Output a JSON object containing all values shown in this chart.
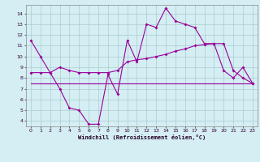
{
  "x": [
    0,
    1,
    2,
    3,
    4,
    5,
    6,
    7,
    8,
    9,
    10,
    11,
    12,
    13,
    14,
    15,
    16,
    17,
    18,
    19,
    20,
    21,
    22,
    23
  ],
  "line1": [
    11.5,
    10.0,
    8.5,
    7.0,
    5.2,
    5.0,
    3.7,
    3.7,
    8.3,
    6.5,
    11.5,
    9.5,
    13.0,
    12.7,
    14.5,
    13.3,
    13.0,
    12.7,
    11.2,
    11.2,
    8.7,
    8.0,
    9.0,
    7.5
  ],
  "line2": [
    8.5,
    8.5,
    8.5,
    9.0,
    8.7,
    8.5,
    8.5,
    8.5,
    8.5,
    8.7,
    9.5,
    9.7,
    9.8,
    10.0,
    10.2,
    10.5,
    10.7,
    11.0,
    11.1,
    11.2,
    11.2,
    8.7,
    8.0,
    7.5
  ],
  "line3": [
    7.5,
    7.5,
    7.5,
    7.5,
    7.5,
    7.5,
    7.5,
    7.5,
    7.5,
    7.5,
    7.5,
    7.5,
    7.5,
    7.5,
    7.5,
    7.5,
    7.5,
    7.5,
    7.5,
    7.5,
    7.5,
    7.5,
    7.5,
    7.5
  ],
  "line_color": "#990099",
  "bg_color": "#d4eef4",
  "grid_color": "#aacccc",
  "xlabel": "Windchill (Refroidissement éolien,°C)",
  "ylim": [
    3.5,
    14.8
  ],
  "yticks": [
    4,
    5,
    6,
    7,
    8,
    9,
    10,
    11,
    12,
    13,
    14
  ],
  "xticks": [
    0,
    1,
    2,
    3,
    4,
    5,
    6,
    7,
    8,
    9,
    10,
    11,
    12,
    13,
    14,
    15,
    16,
    17,
    18,
    19,
    20,
    21,
    22,
    23
  ]
}
